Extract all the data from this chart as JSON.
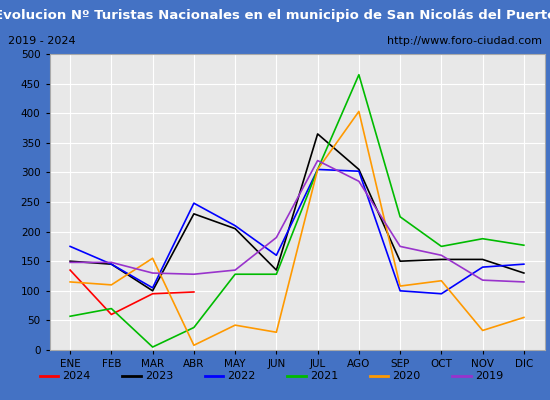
{
  "title": "Evolucion Nº Turistas Nacionales en el municipio de San Nicolás del Puerto",
  "subtitle_left": "2019 - 2024",
  "subtitle_right": "http://www.foro-ciudad.com",
  "months": [
    "ENE",
    "FEB",
    "MAR",
    "ABR",
    "MAY",
    "JUN",
    "JUL",
    "AGO",
    "SEP",
    "OCT",
    "NOV",
    "DIC"
  ],
  "ylim": [
    0,
    500
  ],
  "yticks": [
    0,
    50,
    100,
    150,
    200,
    250,
    300,
    350,
    400,
    450,
    500
  ],
  "series": {
    "2024": {
      "color": "#ff0000",
      "values": [
        135,
        60,
        95,
        98,
        null,
        null,
        null,
        null,
        null,
        null,
        null,
        null
      ]
    },
    "2023": {
      "color": "#000000",
      "values": [
        150,
        145,
        100,
        230,
        205,
        135,
        365,
        305,
        150,
        153,
        153,
        130
      ]
    },
    "2022": {
      "color": "#0000ff",
      "values": [
        175,
        145,
        105,
        248,
        210,
        160,
        305,
        302,
        100,
        95,
        140,
        145
      ]
    },
    "2021": {
      "color": "#00bb00",
      "values": [
        57,
        70,
        5,
        38,
        128,
        128,
        305,
        465,
        225,
        175,
        188,
        177
      ]
    },
    "2020": {
      "color": "#ff9900",
      "values": [
        115,
        110,
        155,
        8,
        42,
        30,
        305,
        403,
        108,
        117,
        33,
        55
      ]
    },
    "2019": {
      "color": "#9933cc",
      "values": [
        148,
        148,
        130,
        128,
        135,
        190,
        320,
        285,
        175,
        160,
        118,
        115
      ]
    }
  },
  "legend_order": [
    "2024",
    "2023",
    "2022",
    "2021",
    "2020",
    "2019"
  ],
  "title_bg": "#4472c4",
  "title_color": "#ffffff",
  "plot_bg": "#e8e8e8",
  "grid_color": "#ffffff",
  "border_color": "#4472c4",
  "subtitle_bg": "#ffffff"
}
